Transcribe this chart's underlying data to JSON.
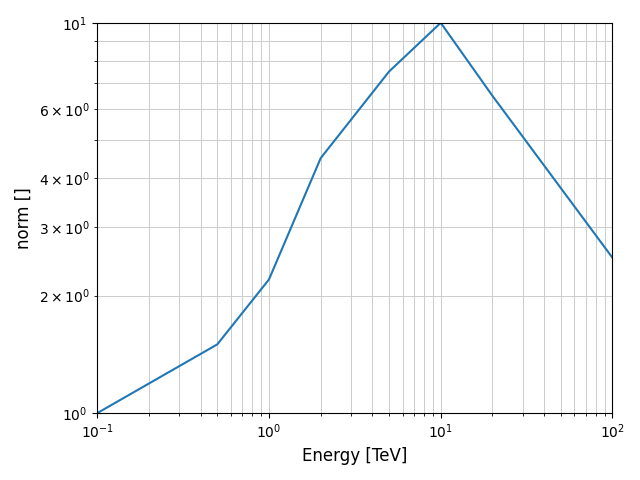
{
  "title": "",
  "xlabel": "Energy [TeV]",
  "ylabel": "norm []",
  "line_color": "#1f77b4",
  "line_width": 1.5,
  "xlim": [
    0.1,
    100
  ],
  "ylim_log": [
    0,
    1
  ],
  "grid": true,
  "breakpoints_x": [
    0.1,
    0.5,
    1.0,
    2.0,
    5.0,
    10.0,
    20.0,
    100.0
  ],
  "breakpoints_y": [
    1.0,
    1.5,
    2.2,
    4.5,
    7.5,
    10.0,
    6.5,
    2.5
  ]
}
